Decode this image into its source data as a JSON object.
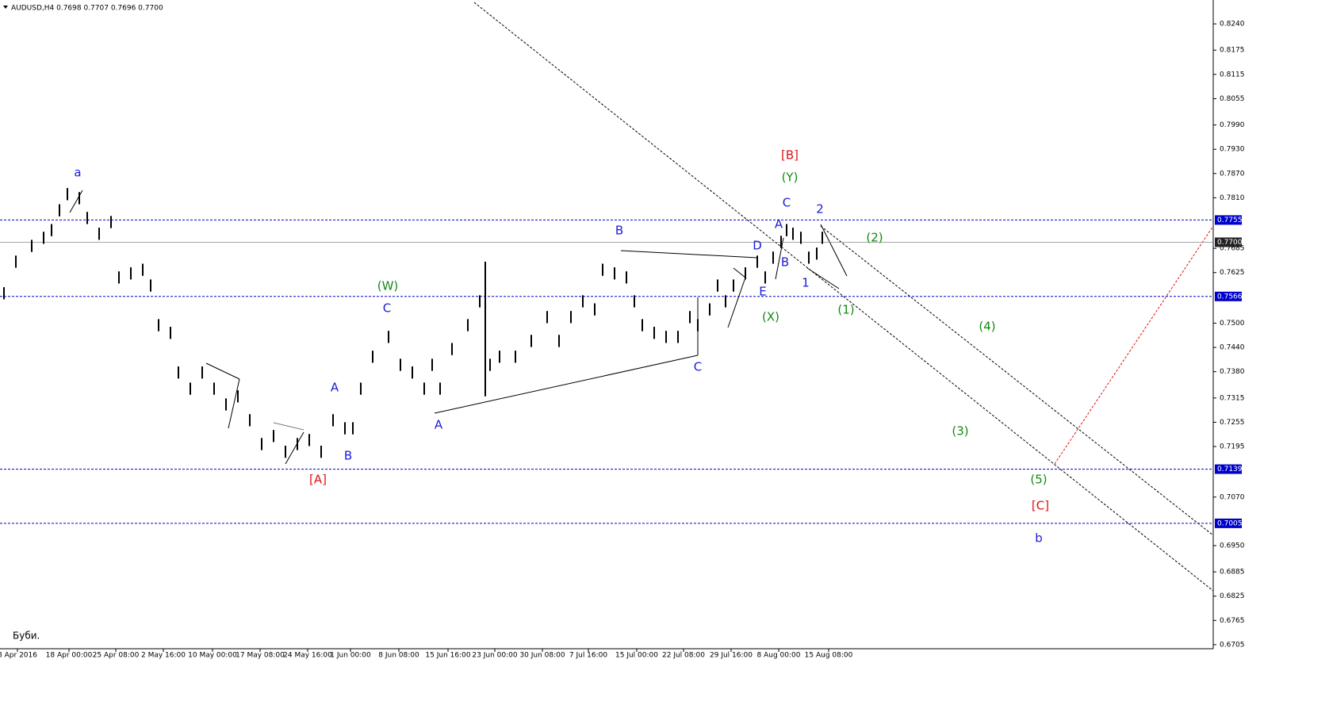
{
  "chart_data": {
    "type": "ohlc",
    "header": "AUDUSD,H4  0.7698 0.7707 0.7696 0.7700",
    "footer": "Буби.",
    "color": "#000000",
    "xlim": [
      0,
      1530
    ],
    "ylim": [
      0.6695,
      0.8299
    ],
    "x": [
      5,
      20,
      40,
      55,
      65,
      75,
      85,
      100,
      110,
      125,
      140,
      150,
      165,
      180,
      190,
      200,
      215,
      225,
      240,
      255,
      270,
      285,
      300,
      315,
      330,
      345,
      360,
      375,
      390,
      405,
      420,
      435,
      445,
      455,
      470,
      490,
      505,
      520,
      535,
      545,
      555,
      570,
      590,
      605,
      612,
      618,
      630,
      650,
      670,
      690,
      705,
      720,
      735,
      750,
      760,
      775,
      790,
      800,
      810,
      825,
      840,
      855,
      870,
      880,
      895,
      905,
      915,
      925,
      940,
      955,
      965,
      975,
      985,
      992,
      1000,
      1010,
      1020,
      1030,
      1037
    ],
    "high": [
      0.7589,
      0.7667,
      0.7706,
      0.7726,
      0.7745,
      0.7794,
      0.7834,
      0.7824,
      0.7775,
      0.7736,
      0.7765,
      0.7628,
      0.7638,
      0.7647,
      0.7608,
      0.751,
      0.7491,
      0.7393,
      0.7353,
      0.7393,
      0.7353,
      0.7314,
      0.7334,
      0.7275,
      0.7216,
      0.7236,
      0.7197,
      0.7216,
      0.7226,
      0.7197,
      0.7275,
      0.7255,
      0.7255,
      0.7353,
      0.7432,
      0.7481,
      0.7412,
      0.7393,
      0.7353,
      0.7412,
      0.7353,
      0.7451,
      0.751,
      0.7569,
      0.7652,
      0.7412,
      0.7432,
      0.7432,
      0.7471,
      0.753,
      0.7471,
      0.753,
      0.7569,
      0.7549,
      0.7647,
      0.7638,
      0.7628,
      0.7569,
      0.751,
      0.7491,
      0.7481,
      0.7481,
      0.753,
      0.751,
      0.7549,
      0.7608,
      0.7569,
      0.7608,
      0.7638,
      0.7667,
      0.7628,
      0.7677,
      0.7716,
      0.7745,
      0.7736,
      0.7726,
      0.7677,
      0.7687,
      0.7726
    ],
    "low": [
      0.7559,
      0.7637,
      0.7676,
      0.7696,
      0.7715,
      0.7764,
      0.7804,
      0.7794,
      0.7745,
      0.7706,
      0.7735,
      0.7598,
      0.7608,
      0.7617,
      0.7578,
      0.748,
      0.7461,
      0.7363,
      0.7323,
      0.7363,
      0.7323,
      0.7284,
      0.7304,
      0.7245,
      0.7186,
      0.7206,
      0.7167,
      0.7186,
      0.7196,
      0.7167,
      0.7245,
      0.7225,
      0.7225,
      0.7323,
      0.7402,
      0.7451,
      0.7382,
      0.7363,
      0.7323,
      0.7382,
      0.7323,
      0.7421,
      0.748,
      0.7539,
      0.7319,
      0.7382,
      0.7402,
      0.7402,
      0.7441,
      0.75,
      0.7441,
      0.75,
      0.7539,
      0.7519,
      0.7617,
      0.7608,
      0.7598,
      0.7539,
      0.748,
      0.7461,
      0.7451,
      0.7451,
      0.75,
      0.748,
      0.7519,
      0.7578,
      0.7539,
      0.7578,
      0.7608,
      0.7637,
      0.7598,
      0.7647,
      0.7686,
      0.7715,
      0.7706,
      0.7696,
      0.7647,
      0.7657,
      0.7696
    ],
    "yticks": [
      {
        "value": 0.824,
        "label": "0.8240"
      },
      {
        "value": 0.8175,
        "label": "0.8175"
      },
      {
        "value": 0.8115,
        "label": "0.8115"
      },
      {
        "value": 0.8055,
        "label": "0.8055"
      },
      {
        "value": 0.799,
        "label": "0.7990"
      },
      {
        "value": 0.793,
        "label": "0.7930"
      },
      {
        "value": 0.787,
        "label": "0.7870"
      },
      {
        "value": 0.781,
        "label": "0.7810"
      },
      {
        "value": 0.7685,
        "label": "0.7685"
      },
      {
        "value": 0.7625,
        "label": "0.7625"
      },
      {
        "value": 0.75,
        "label": "0.7500"
      },
      {
        "value": 0.744,
        "label": "0.7440"
      },
      {
        "value": 0.738,
        "label": "0.7380"
      },
      {
        "value": 0.7315,
        "label": "0.7315"
      },
      {
        "value": 0.7255,
        "label": "0.7255"
      },
      {
        "value": 0.7195,
        "label": "0.7195"
      },
      {
        "value": 0.707,
        "label": "0.7070"
      },
      {
        "value": 0.695,
        "label": "0.6950"
      },
      {
        "value": 0.6885,
        "label": "0.6885"
      },
      {
        "value": 0.6825,
        "label": "0.6825"
      },
      {
        "value": 0.6765,
        "label": "0.6765"
      },
      {
        "value": 0.6705,
        "label": "0.6705"
      }
    ],
    "xticks": [
      {
        "value": 22,
        "label": "8 Apr 2016"
      },
      {
        "value": 87,
        "label": "18 Apr 00:00"
      },
      {
        "value": 146,
        "label": "25 Apr 08:00"
      },
      {
        "value": 206,
        "label": "2 May 16:00"
      },
      {
        "value": 268,
        "label": "10 May 00:00"
      },
      {
        "value": 328,
        "label": "17 May 08:00"
      },
      {
        "value": 388,
        "label": "24 May 16:00"
      },
      {
        "value": 442,
        "label": "1 Jun 00:00"
      },
      {
        "value": 503,
        "label": "8 Jun 08:00"
      },
      {
        "value": 565,
        "label": "15 Jun 16:00"
      },
      {
        "value": 624,
        "label": "23 Jun 00:00"
      },
      {
        "value": 684,
        "label": "30 Jun 08:00"
      },
      {
        "value": 742,
        "label": "7 Jul 16:00"
      },
      {
        "value": 803,
        "label": "15 Jul 00:00"
      },
      {
        "value": 862,
        "label": "22 Jul 08:00"
      },
      {
        "value": 922,
        "label": "29 Jul 16:00"
      },
      {
        "value": 982,
        "label": "8 Aug 00:00"
      },
      {
        "value": 1045,
        "label": "15 Aug 08:00"
      }
    ],
    "levels": [
      {
        "value": 0.7755,
        "label": "0.7755",
        "color": "#0000cc"
      },
      {
        "value": 0.77,
        "label": "0.7700",
        "color": "#888888"
      },
      {
        "value": 0.7566,
        "label": "0.7566",
        "color": "#0000cc"
      },
      {
        "value": 0.7139,
        "label": "0.7139",
        "color": "#0000cc"
      },
      {
        "value": 0.7005,
        "label": "0.7005",
        "color": "#0000cc"
      }
    ],
    "annotations": [
      {
        "text": "a",
        "color": "#1a1adb"
      },
      {
        "text": "[B]",
        "color": "#e01010"
      },
      {
        "text": "(Y)",
        "color": "#138a13"
      },
      {
        "text": "C",
        "color": "#1a1adb"
      },
      {
        "text": "A",
        "color": "#1a1adb"
      },
      {
        "text": "2",
        "color": "#1a1adb"
      },
      {
        "text": "(2)",
        "color": "#138a13"
      },
      {
        "text": "B",
        "color": "#1a1adb"
      },
      {
        "text": "D",
        "color": "#1a1adb"
      },
      {
        "text": "B",
        "color": "#1a1adb"
      },
      {
        "text": "1",
        "color": "#1a1adb"
      },
      {
        "text": "E",
        "color": "#1a1adb"
      },
      {
        "text": "(X)",
        "color": "#138a13"
      },
      {
        "text": "(1)",
        "color": "#138a13"
      },
      {
        "text": "(4)",
        "color": "#138a13"
      },
      {
        "text": "(W)",
        "color": "#138a13"
      },
      {
        "text": "C",
        "color": "#1a1adb"
      },
      {
        "text": "A",
        "color": "#1a1adb"
      },
      {
        "text": "B",
        "color": "#1a1adb"
      },
      {
        "text": "A",
        "color": "#1a1adb"
      },
      {
        "text": "[A]",
        "color": "#e01010"
      },
      {
        "text": "C",
        "color": "#1a1adb"
      },
      {
        "text": "(3)",
        "color": "#138a13"
      },
      {
        "text": "(5)",
        "color": "#138a13"
      },
      {
        "text": "[C]",
        "color": "#e01010"
      },
      {
        "text": "b",
        "color": "#1a1adb"
      }
    ]
  }
}
